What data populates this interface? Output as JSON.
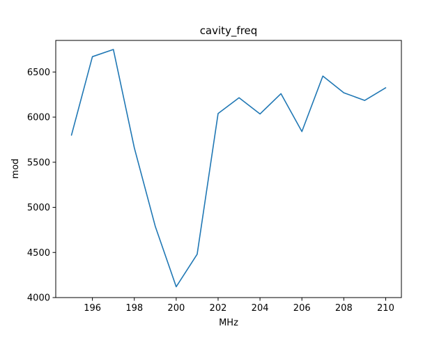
{
  "chart_data": {
    "type": "line",
    "title": "cavity_freq",
    "xlabel": "MHz",
    "ylabel": "mod",
    "xlim": [
      194.25,
      210.75
    ],
    "ylim": [
      4000,
      6850
    ],
    "xticks": [
      196,
      198,
      200,
      202,
      204,
      206,
      208,
      210
    ],
    "yticks": [
      4000,
      4500,
      5000,
      5500,
      6000,
      6500
    ],
    "grid": false,
    "legend": "none",
    "series": [
      {
        "color": "#1f77b4",
        "x": [
          195,
          196,
          197,
          198,
          199,
          200,
          201,
          202,
          203,
          204,
          205,
          206,
          207,
          208,
          209,
          210
        ],
        "y": [
          5800,
          6670,
          6750,
          5660,
          4790,
          4120,
          4480,
          6040,
          6215,
          6035,
          6260,
          5840,
          6455,
          6270,
          6185,
          6325
        ]
      }
    ]
  }
}
